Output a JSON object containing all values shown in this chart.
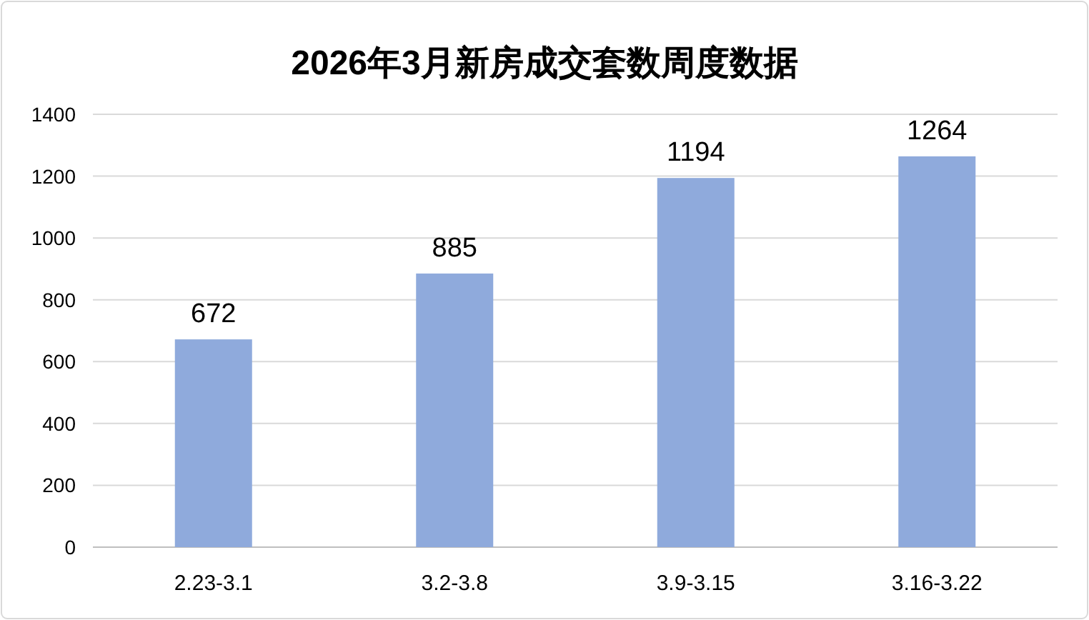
{
  "chart_data": {
    "type": "bar",
    "title": "2026年3月新房成交套数周度数据",
    "categories": [
      "2.23-3.1",
      "3.2-3.8",
      "3.9-3.15",
      "3.16-3.22"
    ],
    "values": [
      672,
      885,
      1194,
      1264
    ],
    "color": "#8faadc",
    "ylim": [
      0,
      1400
    ],
    "yticks": [
      0,
      200,
      400,
      600,
      800,
      1000,
      1200,
      1400
    ],
    "grid": "y",
    "data_labels": true
  }
}
